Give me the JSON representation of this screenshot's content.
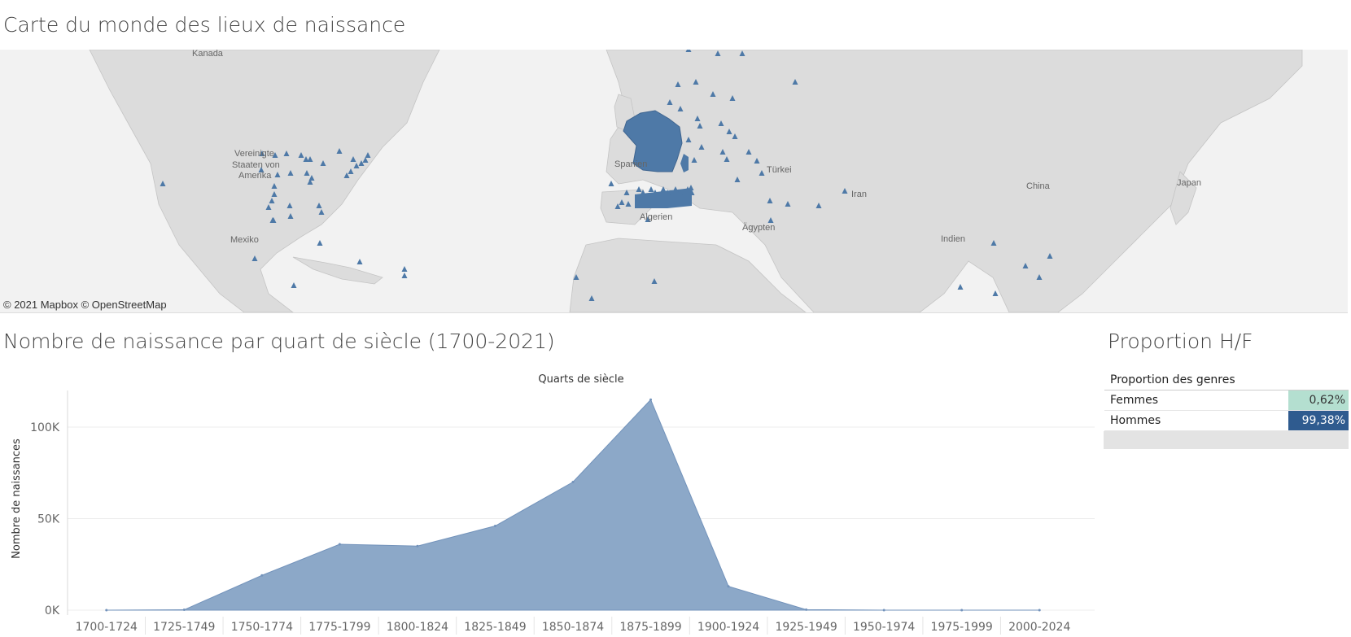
{
  "map": {
    "title": "Carte du monde des lieux de naissance",
    "attribution": "© 2021 Mapbox  © OpenStreetMap",
    "labels": [
      "Kanada",
      "Vereinigte",
      "Staaten von",
      "Amerika",
      "Mexiko",
      "Spanien",
      "Algerien",
      "Ägypten",
      "Türkei",
      "Iran",
      "China",
      "Japan",
      "Indien"
    ],
    "highlight_color": "#4e79a7",
    "land_color": "#dedede",
    "water_color": "#f2f2f2"
  },
  "chart": {
    "title": "Nombre de naissance par quart de siècle (1700-2021)",
    "fill_color": "#8ca8c8",
    "line_color": "#7393bb"
  },
  "chart_data": {
    "type": "area",
    "title": "Nombre de naissance par quart de siècle (1700-2021)",
    "xlabel": "Quarts de siècle",
    "ylabel": "Nombre de naissances",
    "categories": [
      "1700-1724",
      "1725-1749",
      "1750-1774",
      "1775-1799",
      "1800-1824",
      "1825-1849",
      "1850-1874",
      "1875-1899",
      "1900-1924",
      "1925-1949",
      "1950-1974",
      "1975-1999",
      "2000-2024"
    ],
    "values": [
      0,
      200,
      19000,
      36000,
      35000,
      46000,
      70000,
      115000,
      13000,
      300,
      0,
      0,
      0
    ],
    "ylim": [
      0,
      120000
    ],
    "yticks": [
      0,
      50000,
      100000
    ],
    "ytick_labels": [
      "0K",
      "50K",
      "100K"
    ],
    "grid": true
  },
  "proportion": {
    "title": "Proportion H/F",
    "header": "Proportion des genres",
    "rows": [
      {
        "label": "Femmes",
        "value": "0,62%",
        "color": "#b4dfd0",
        "text_color": "#333333"
      },
      {
        "label": "Hommes",
        "value": "99,38%",
        "color": "#2f5b8f",
        "text_color": "#ffffff"
      }
    ]
  }
}
